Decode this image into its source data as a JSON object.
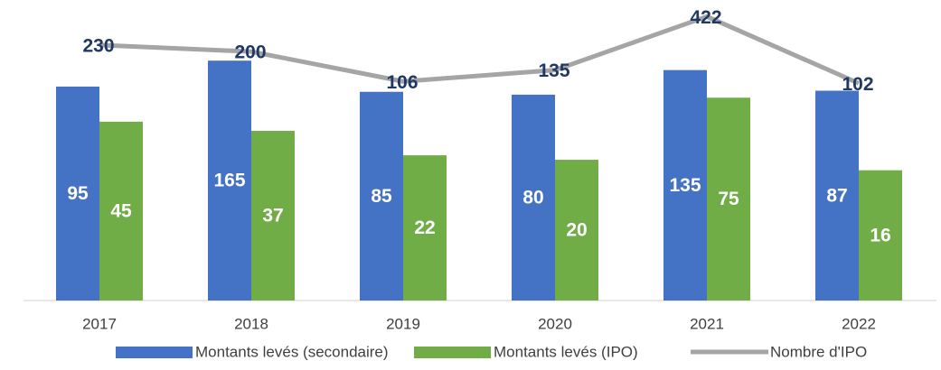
{
  "chart_data": {
    "type": "bar",
    "yscale": "log",
    "ylim": [
      1,
      600
    ],
    "legend": "bottom",
    "categories": [
      "2017",
      "2018",
      "2019",
      "2020",
      "2021",
      "2022"
    ],
    "series": [
      {
        "name": "Montants levés (secondaire)",
        "type": "bar",
        "color": "#4472c4",
        "values": [
          95,
          165,
          85,
          80,
          135,
          87
        ]
      },
      {
        "name": "Montants levés  (IPO)",
        "type": "bar",
        "color": "#70ad47",
        "values": [
          45,
          37,
          22,
          20,
          75,
          16
        ]
      },
      {
        "name": "Nombre d'IPO",
        "type": "line",
        "color": "#a5a5a5",
        "values": [
          230,
          200,
          106,
          135,
          422,
          102
        ]
      }
    ]
  }
}
